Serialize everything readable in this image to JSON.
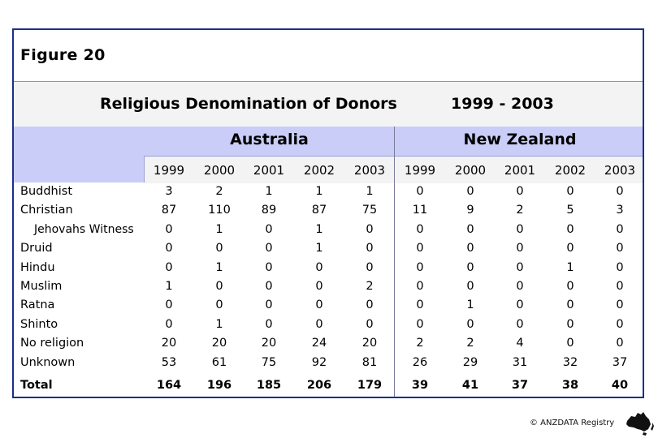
{
  "figure_label": "Figure 20",
  "title": "Religious Denomination of Donors",
  "period": "1999 - 2003",
  "regions": [
    "Australia",
    "New Zealand"
  ],
  "years": [
    "1999",
    "2000",
    "2001",
    "2002",
    "2003"
  ],
  "rows": [
    {
      "label": "Buddhist",
      "indent": false,
      "total": false,
      "au": [
        "3",
        "2",
        "1",
        "1",
        "1"
      ],
      "nz": [
        "0",
        "0",
        "0",
        "0",
        "0"
      ]
    },
    {
      "label": "Christian",
      "indent": false,
      "total": false,
      "au": [
        "87",
        "110",
        "89",
        "87",
        "75"
      ],
      "nz": [
        "11",
        "9",
        "2",
        "5",
        "3"
      ]
    },
    {
      "label": "Jehovahs Witness",
      "indent": true,
      "total": false,
      "au": [
        "0",
        "1",
        "0",
        "1",
        "0"
      ],
      "nz": [
        "0",
        "0",
        "0",
        "0",
        "0"
      ]
    },
    {
      "label": "Druid",
      "indent": false,
      "total": false,
      "au": [
        "0",
        "0",
        "0",
        "1",
        "0"
      ],
      "nz": [
        "0",
        "0",
        "0",
        "0",
        "0"
      ]
    },
    {
      "label": "Hindu",
      "indent": false,
      "total": false,
      "au": [
        "0",
        "1",
        "0",
        "0",
        "0"
      ],
      "nz": [
        "0",
        "0",
        "0",
        "1",
        "0"
      ]
    },
    {
      "label": "Muslim",
      "indent": false,
      "total": false,
      "au": [
        "1",
        "0",
        "0",
        "0",
        "2"
      ],
      "nz": [
        "0",
        "0",
        "0",
        "0",
        "0"
      ]
    },
    {
      "label": "Ratna",
      "indent": false,
      "total": false,
      "au": [
        "0",
        "0",
        "0",
        "0",
        "0"
      ],
      "nz": [
        "0",
        "1",
        "0",
        "0",
        "0"
      ]
    },
    {
      "label": "Shinto",
      "indent": false,
      "total": false,
      "au": [
        "0",
        "1",
        "0",
        "0",
        "0"
      ],
      "nz": [
        "0",
        "0",
        "0",
        "0",
        "0"
      ]
    },
    {
      "label": "No religion",
      "indent": false,
      "total": false,
      "au": [
        "20",
        "20",
        "20",
        "24",
        "20"
      ],
      "nz": [
        "2",
        "2",
        "4",
        "0",
        "0"
      ]
    },
    {
      "label": "Unknown",
      "indent": false,
      "total": false,
      "au": [
        "53",
        "61",
        "75",
        "92",
        "81"
      ],
      "nz": [
        "26",
        "29",
        "31",
        "32",
        "37"
      ]
    },
    {
      "label": "Total",
      "indent": false,
      "total": true,
      "au": [
        "164",
        "196",
        "185",
        "206",
        "179"
      ],
      "nz": [
        "39",
        "41",
        "37",
        "38",
        "40"
      ]
    }
  ],
  "copyright": "© ANZDATA Registry",
  "colors": {
    "border": "#1c2f8a",
    "header_band": "#c9cdf7",
    "light_band": "#f3f3f3"
  }
}
